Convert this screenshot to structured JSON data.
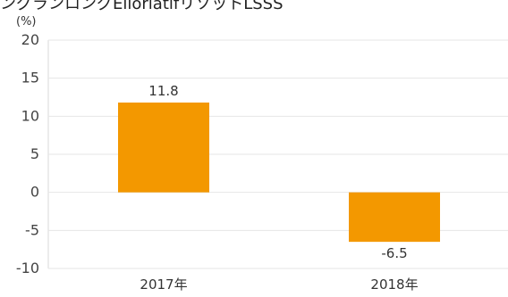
{
  "page": {
    "title_fragment": "ングランロングEliorlatifリソットLSSS"
  },
  "chart_data": {
    "type": "bar",
    "categories": [
      "2017年",
      "2018年"
    ],
    "values": [
      11.8,
      -6.5
    ],
    "data_labels": [
      "11.8",
      "-6.5"
    ],
    "unit_label": "(%)",
    "xlabel": "",
    "ylabel": "",
    "ylim": [
      -10,
      20
    ],
    "yticks": [
      20,
      15,
      10,
      5,
      0,
      -5,
      -10
    ],
    "ytick_labels": [
      "20",
      "15",
      "10",
      "5",
      "0",
      "-5",
      "-10"
    ],
    "grid": true,
    "legend": "none",
    "colors": {
      "bar": "#f39800",
      "grid": "#e6e6e6",
      "axis": "#d9d9d9"
    }
  }
}
